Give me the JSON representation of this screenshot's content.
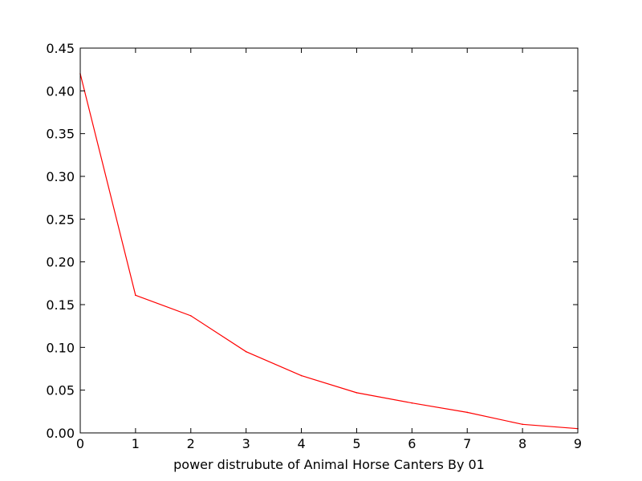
{
  "chart_data": {
    "type": "line",
    "title": "",
    "xlabel": "power distrubute of Animal Horse Canters By 01",
    "ylabel": "",
    "xlim": [
      0,
      9
    ],
    "ylim": [
      0,
      0.45
    ],
    "xticks": [
      0,
      1,
      2,
      3,
      4,
      5,
      6,
      7,
      8,
      9
    ],
    "xtick_labels": [
      "0",
      "1",
      "2",
      "3",
      "4",
      "5",
      "6",
      "7",
      "8",
      "9"
    ],
    "yticks": [
      0,
      0.05,
      0.1,
      0.15,
      0.2,
      0.25,
      0.3,
      0.35,
      0.4,
      0.45
    ],
    "ytick_labels": [
      "0.00",
      "0.05",
      "0.10",
      "0.15",
      "0.20",
      "0.25",
      "0.30",
      "0.35",
      "0.40",
      "0.45"
    ],
    "grid": false,
    "legend": "none",
    "series": [
      {
        "color": "#ff0000",
        "x": [
          0,
          1,
          2,
          3,
          4,
          5,
          6,
          7,
          8,
          9
        ],
        "y": [
          0.42,
          0.161,
          0.137,
          0.095,
          0.067,
          0.047,
          0.035,
          0.024,
          0.01,
          0.005
        ]
      }
    ]
  }
}
